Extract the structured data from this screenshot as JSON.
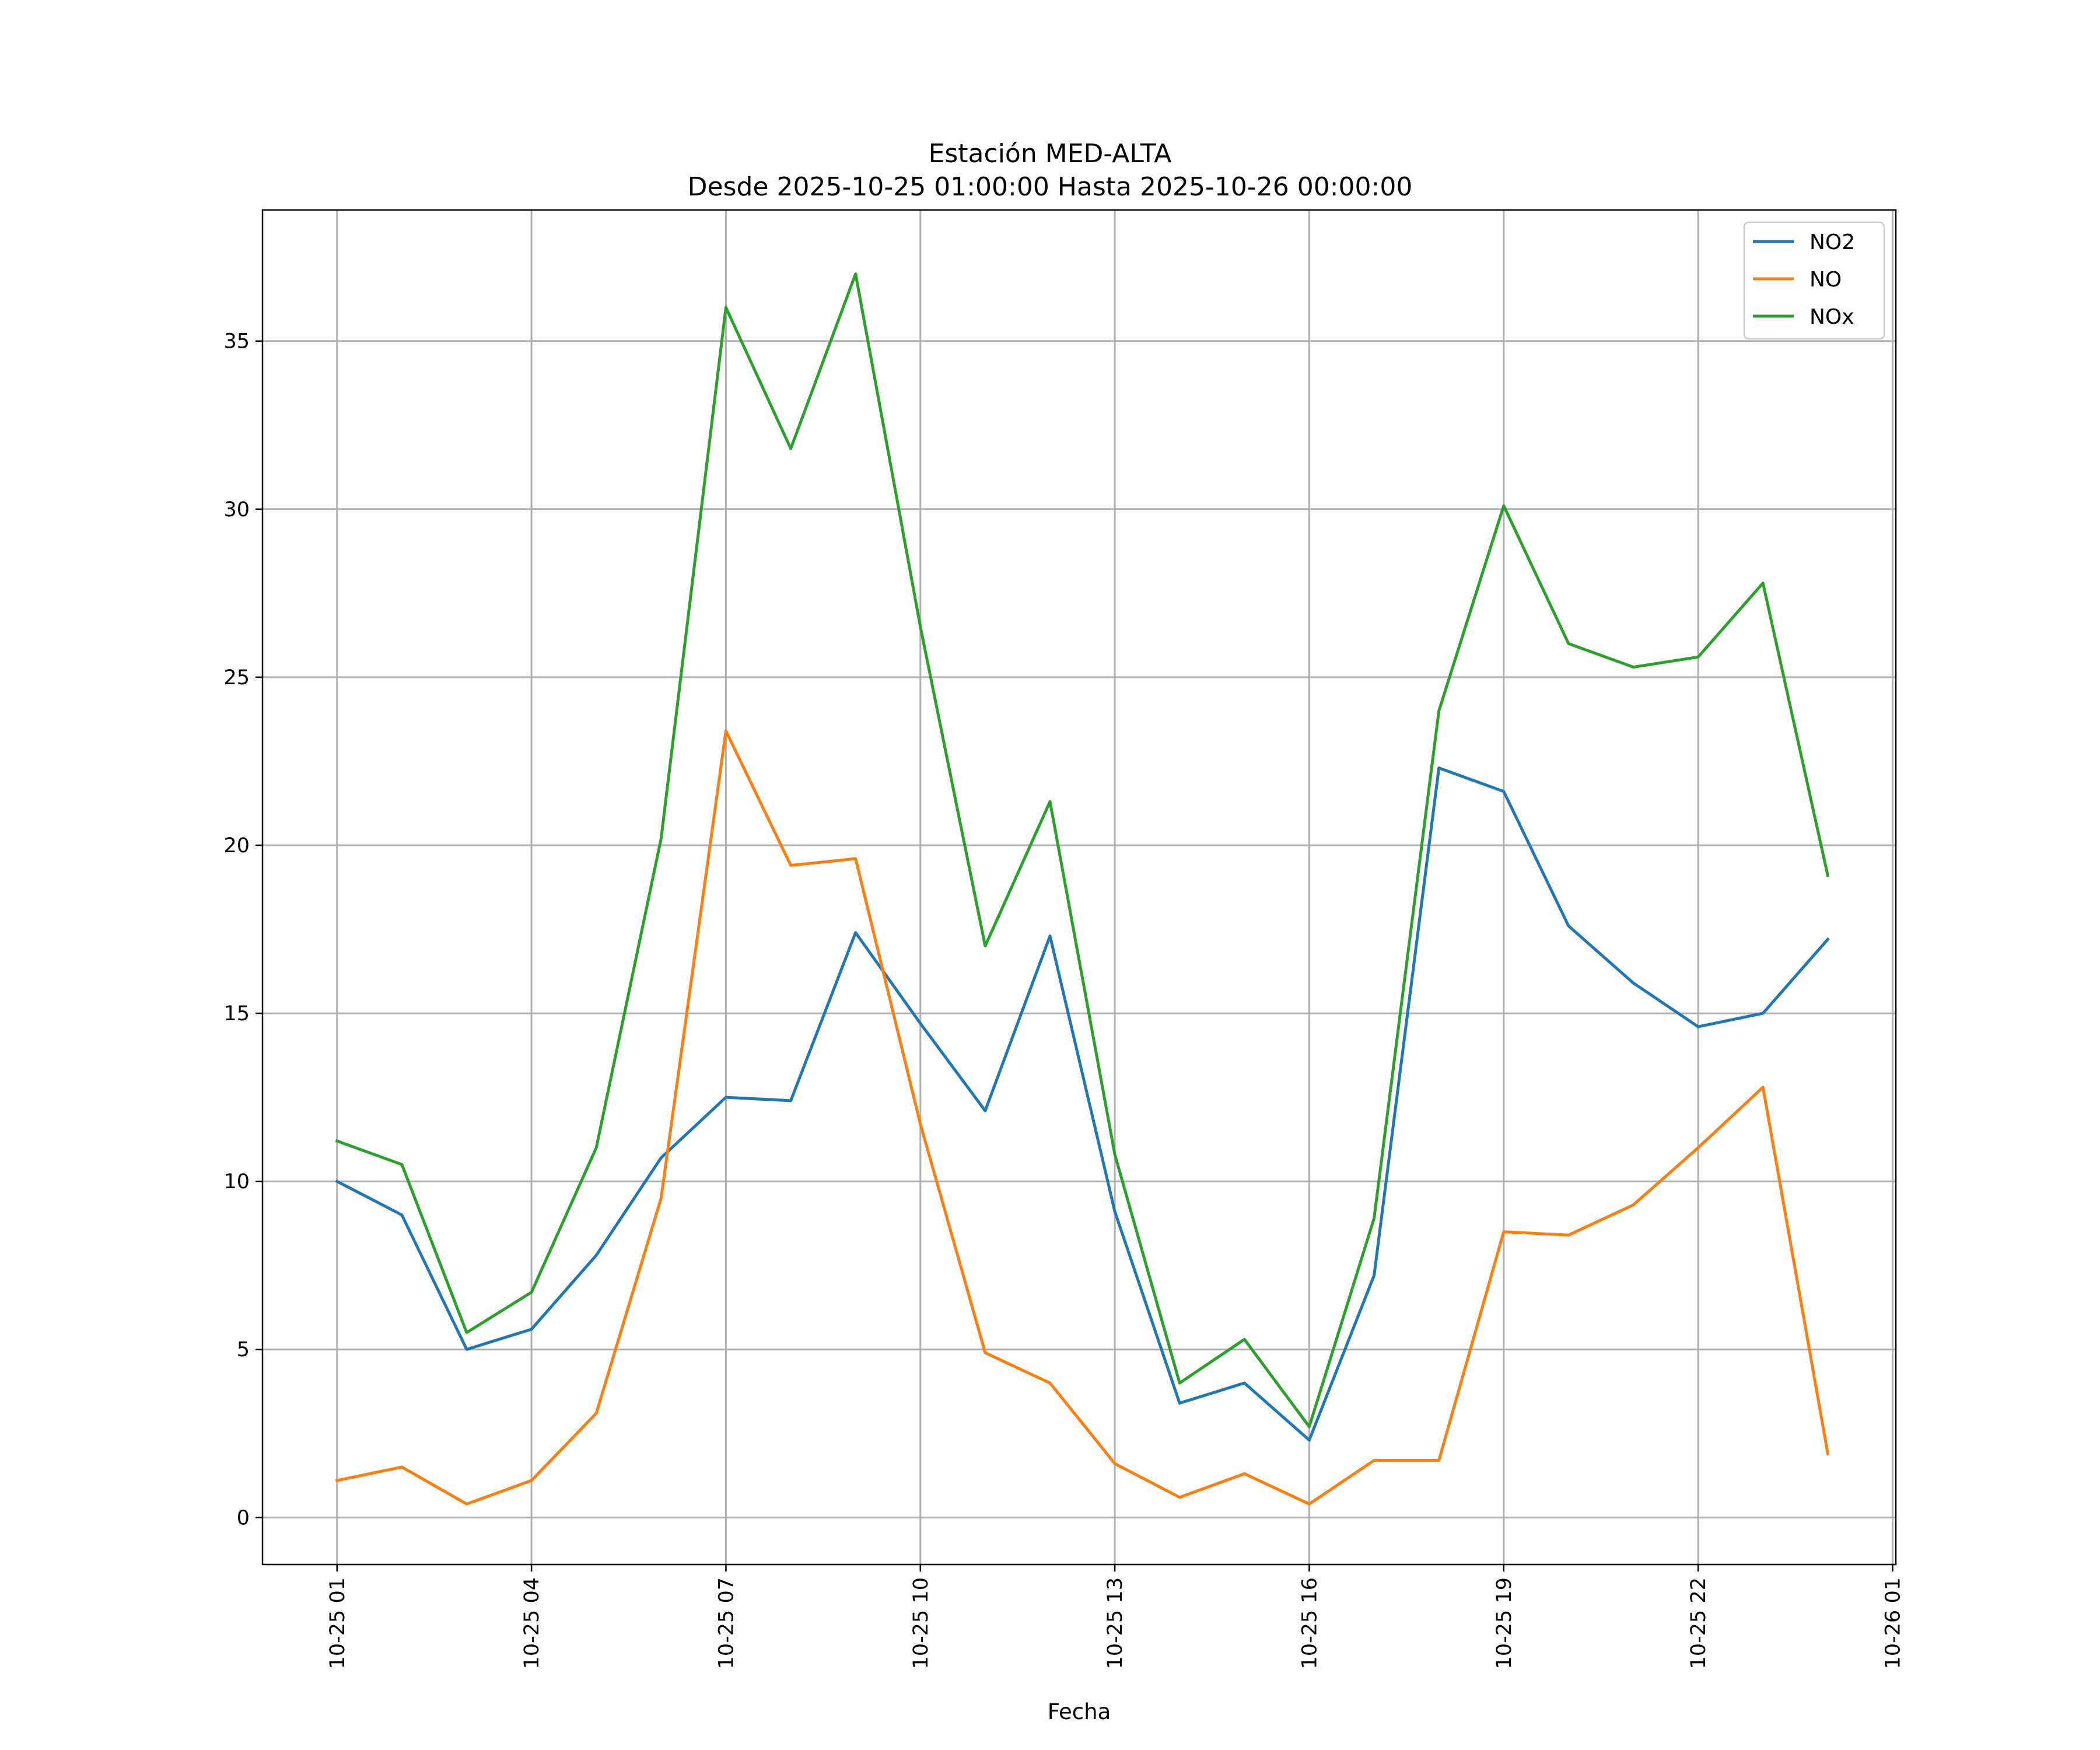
{
  "chart_data": {
    "type": "line",
    "title": "Estación MED-ALTA",
    "subtitle": "Desde 2025-10-25 01:00:00 Hasta 2025-10-26 00:00:00",
    "xlabel": "Fecha",
    "ylabel": "",
    "x_hours": [
      1,
      2,
      3,
      4,
      5,
      6,
      7,
      8,
      9,
      10,
      11,
      12,
      13,
      14,
      15,
      16,
      17,
      18,
      19,
      20,
      21,
      22,
      23,
      24
    ],
    "x_range_hours": [
      -0.15,
      25.05
    ],
    "x_ticks": [
      {
        "hour": 1,
        "label": "10-25 01"
      },
      {
        "hour": 4,
        "label": "10-25 04"
      },
      {
        "hour": 7,
        "label": "10-25 07"
      },
      {
        "hour": 10,
        "label": "10-25 10"
      },
      {
        "hour": 13,
        "label": "10-25 13"
      },
      {
        "hour": 16,
        "label": "10-25 16"
      },
      {
        "hour": 19,
        "label": "10-25 19"
      },
      {
        "hour": 22,
        "label": "10-25 22"
      },
      {
        "hour": 25,
        "label": "10-26 01"
      }
    ],
    "ylim": [
      -1.4,
      38.9
    ],
    "y_ticks": [
      0,
      5,
      10,
      15,
      20,
      25,
      30,
      35
    ],
    "grid": true,
    "legend_position": "top-right",
    "series": [
      {
        "name": "NO2",
        "color": "#1f77b4",
        "values": [
          10.0,
          9.0,
          5.0,
          5.6,
          7.8,
          10.7,
          12.5,
          12.4,
          17.4,
          14.7,
          12.1,
          17.3,
          9.1,
          3.4,
          4.0,
          2.3,
          7.2,
          22.3,
          21.6,
          17.6,
          15.9,
          14.6,
          15.0,
          17.2
        ]
      },
      {
        "name": "NO",
        "color": "#ff7f0e",
        "values": [
          1.1,
          1.5,
          0.4,
          1.1,
          3.1,
          9.5,
          23.4,
          19.4,
          19.6,
          11.7,
          4.9,
          4.0,
          1.6,
          0.6,
          1.3,
          0.4,
          1.7,
          1.7,
          8.5,
          8.4,
          9.3,
          11.0,
          12.8,
          1.9
        ]
      },
      {
        "name": "NOx",
        "color": "#2ca02c",
        "values": [
          11.2,
          10.5,
          5.5,
          6.7,
          11.0,
          20.2,
          36.0,
          31.8,
          37.0,
          26.5,
          17.0,
          21.3,
          10.8,
          4.0,
          5.3,
          2.7,
          8.9,
          24.0,
          30.1,
          26.0,
          25.3,
          25.6,
          27.8,
          19.1
        ]
      }
    ]
  }
}
